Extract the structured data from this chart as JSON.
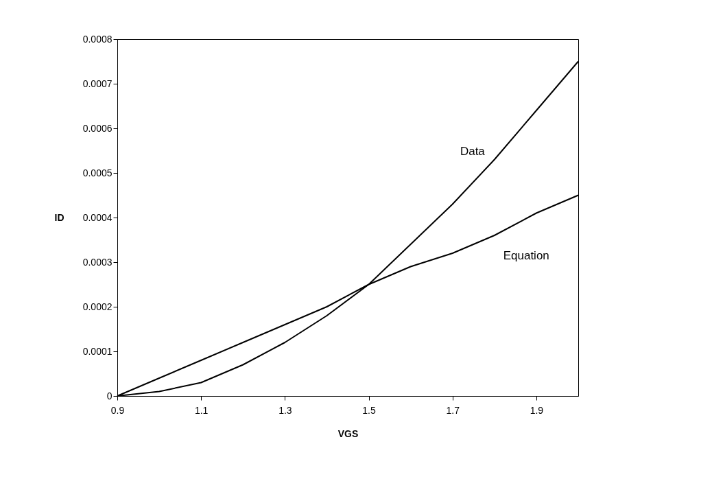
{
  "chart_data": {
    "type": "line",
    "xlabel": "VGS",
    "ylabel": "ID",
    "x": [
      0.9,
      1.0,
      1.1,
      1.2,
      1.3,
      1.4,
      1.5,
      1.6,
      1.7,
      1.8,
      1.9,
      2.0
    ],
    "series": [
      {
        "name": "Data",
        "color": "#000000",
        "values": [
          0,
          1e-05,
          3e-05,
          7e-05,
          0.00012,
          0.00018,
          0.00025,
          0.00034,
          0.00043,
          0.00053,
          0.00064,
          0.00075
        ]
      },
      {
        "name": "Equation",
        "color": "#000000",
        "values": [
          0,
          4e-05,
          8e-05,
          0.00012,
          0.00016,
          0.0002,
          0.00025,
          0.00029,
          0.00032,
          0.00036,
          0.00041,
          0.00045
        ]
      }
    ],
    "xlim": [
      0.9,
      2.0
    ],
    "xticks": [
      0.9,
      1.1,
      1.3,
      1.5,
      1.7,
      1.9
    ],
    "ylim": [
      0,
      0.0008
    ],
    "yticks": [
      0,
      0.0001,
      0.0002,
      0.0003,
      0.0004,
      0.0005,
      0.0006,
      0.0007,
      0.0008
    ],
    "grid": false,
    "legend": false,
    "marker": "none",
    "line_style": "solid"
  }
}
